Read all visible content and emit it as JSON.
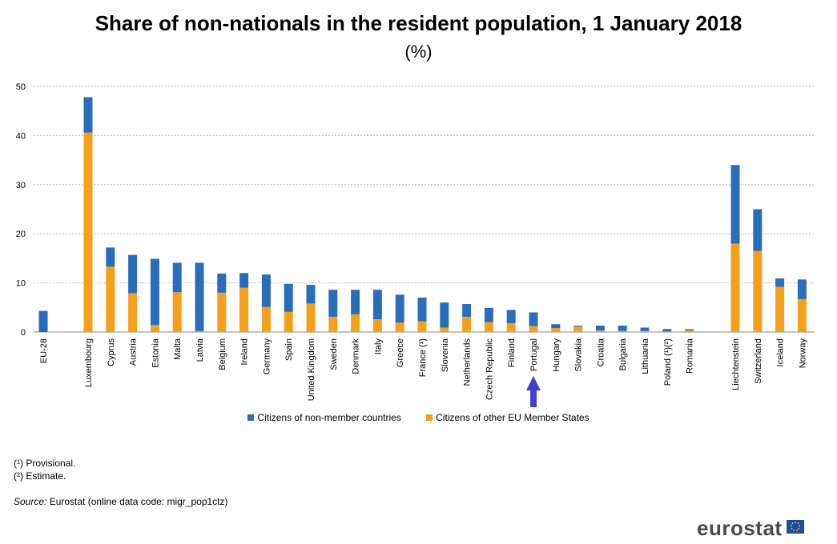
{
  "chart_data": {
    "type": "bar",
    "stacked": true,
    "title": "Share of non-nationals in the resident population, 1 January 2018",
    "subtitle": "(%)",
    "ylim": [
      0,
      50
    ],
    "yticks": [
      0,
      10,
      20,
      30,
      40,
      50
    ],
    "categories": [
      "EU-28",
      "Luxembourg",
      "Cyprus",
      "Austria",
      "Estonia",
      "Malta",
      "Latvia",
      "Belgium",
      "Ireland",
      "Germany",
      "Spain",
      "United Kingdom",
      "Sweden",
      "Denmark",
      "Italy",
      "Greece",
      "France (¹)",
      "Slovenia",
      "Netherlands",
      "Czech Republic",
      "Finland",
      "Portugal",
      "Hungary",
      "Slovakia",
      "Croatia",
      "Bulgaria",
      "Lithuania",
      "Poland (¹)(²)",
      "Romania",
      "Liechtenstein",
      "Switzerland",
      "Iceland",
      "Norway"
    ],
    "series": [
      {
        "name": "Citizens of other EU Member States",
        "color": "#f5a01a",
        "values": [
          0,
          40.6,
          13.3,
          7.9,
          1.4,
          8.1,
          0.2,
          8.0,
          9.0,
          5.1,
          4.1,
          5.8,
          3.1,
          3.6,
          2.6,
          1.9,
          2.2,
          0.9,
          3.1,
          2.0,
          1.8,
          1.2,
          0.8,
          1.1,
          0.3,
          0.2,
          0.2,
          0.1,
          0.4,
          18.0,
          16.5,
          9.2,
          6.7
        ]
      },
      {
        "name": "Citizens of non-member countries",
        "color": "#2a6ebb",
        "values": [
          4.3,
          7.2,
          3.9,
          7.8,
          13.5,
          6.0,
          13.9,
          3.9,
          3.0,
          6.6,
          5.7,
          3.8,
          5.5,
          5.0,
          6.0,
          5.7,
          4.8,
          5.1,
          2.6,
          2.9,
          2.7,
          2.8,
          0.8,
          0.2,
          1.0,
          1.1,
          0.7,
          0.5,
          0.2,
          16.0,
          8.5,
          1.7,
          4.0
        ]
      }
    ]
  },
  "legend": {
    "non_member_label": "Citizens of non-member countries",
    "eu_label": "Citizens of other EU Member States"
  },
  "notes": {
    "provisional": "(¹) Provisional.",
    "estimate": "(²) Estimate.",
    "source_label": "Source:",
    "source_text": "Eurostat (online data code: migr_pop1ctz)"
  },
  "logo": {
    "text": "eurostat"
  },
  "annotation": {
    "arrow_target": "Portugal",
    "color": "#4040d0"
  }
}
